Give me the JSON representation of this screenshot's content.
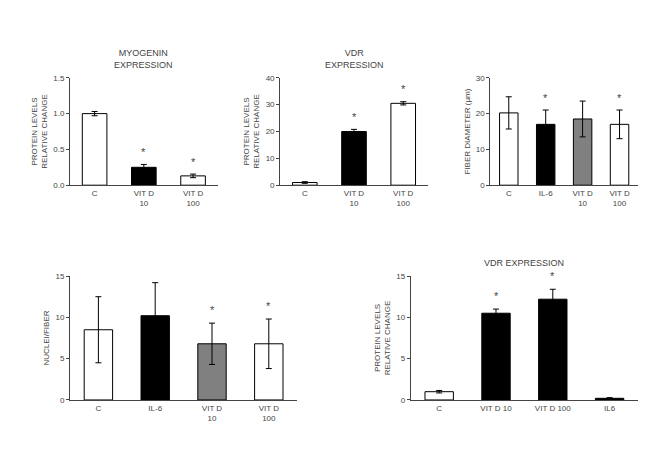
{
  "chart_data": [
    {
      "type": "bar",
      "title": "MYOGENIN\nEXPRESSION",
      "ylabel": "PROTEIN LEVELS\nRELATIVE CHANGE",
      "categories": [
        "C",
        "VIT D\n10",
        "VIT D\n100"
      ],
      "values": [
        1.0,
        0.25,
        0.13
      ],
      "errors": [
        0.03,
        0.04,
        0.025
      ],
      "colors": [
        "white",
        "black",
        "white"
      ],
      "ylim": [
        0.0,
        1.5
      ],
      "yticks": [
        {
          "value": 0.0,
          "label": "0.0"
        },
        0.5,
        {
          "value": 1.0,
          "label": "1.0"
        },
        1.5
      ],
      "grid": false,
      "annotations": [
        {
          "category": "VIT D\n10",
          "text": "*"
        },
        {
          "category": "VIT D\n100",
          "text": "*"
        }
      ]
    },
    {
      "type": "bar",
      "title": "VDR\nEXPRESSION",
      "ylabel": "PROTEIN LEVELS\nRELATIVE CHANGE",
      "categories": [
        "C",
        "VIT D\n10",
        "VIT D\n100"
      ],
      "values": [
        1.0,
        20.0,
        30.5
      ],
      "errors": [
        0.3,
        0.8,
        0.6
      ],
      "colors": [
        "white",
        "black",
        "white"
      ],
      "ylim": [
        0,
        40
      ],
      "yticks": [
        0,
        10,
        20,
        30,
        40
      ],
      "grid": false,
      "annotations": [
        {
          "category": "VIT D\n10",
          "text": "*"
        },
        {
          "category": "VIT D\n100",
          "text": "*"
        }
      ]
    },
    {
      "type": "bar",
      "ylabel": "FIBER DIAMETER (µm)",
      "categories": [
        "C",
        "IL-6",
        "VIT D\n10",
        "VIT D\n100"
      ],
      "values": [
        20.2,
        17.0,
        18.5,
        17.0
      ],
      "errors": [
        4.5,
        4.0,
        5.0,
        4.0
      ],
      "colors": [
        "white",
        "black",
        "#808080",
        "white"
      ],
      "ylim": [
        0,
        30
      ],
      "yticks": [
        0,
        10,
        20,
        30
      ],
      "grid": false,
      "annotations": [
        {
          "category": "IL-6",
          "text": "*"
        },
        {
          "category": "VIT D\n100",
          "text": "*"
        }
      ]
    },
    {
      "type": "bar",
      "ylabel": "NUCLEI/FIBER",
      "categories": [
        "C",
        "IL-6",
        "VIT D\n10",
        "VIT D\n100"
      ],
      "values": [
        8.5,
        10.2,
        6.8,
        6.8
      ],
      "errors": [
        4.0,
        4.0,
        2.5,
        3.0
      ],
      "colors": [
        "white",
        "black",
        "#808080",
        "white"
      ],
      "ylim": [
        0,
        15
      ],
      "yticks": [
        0,
        5,
        10,
        15
      ],
      "grid": false,
      "annotations": [
        {
          "category": "VIT D\n10",
          "text": "*"
        },
        {
          "category": "VIT D\n100",
          "text": "*"
        }
      ]
    },
    {
      "type": "bar",
      "title": "VDR EXPRESSION",
      "ylabel": "PROTEIN LEVELS\nRELATIVE CHANGE",
      "categories": [
        "C",
        "VIT D 10",
        "VIT D 100",
        "IL6"
      ],
      "values": [
        1.0,
        10.5,
        12.2,
        0.2
      ],
      "errors": [
        0.15,
        0.5,
        1.2,
        0.08
      ],
      "colors": [
        "white",
        "black",
        "black",
        "black"
      ],
      "ylim": [
        0,
        15
      ],
      "yticks": [
        0,
        5,
        10,
        15
      ],
      "grid": false,
      "annotations": [
        {
          "category": "VIT D 10",
          "text": "*"
        },
        {
          "category": "VIT D 100",
          "text": "*"
        }
      ]
    }
  ]
}
